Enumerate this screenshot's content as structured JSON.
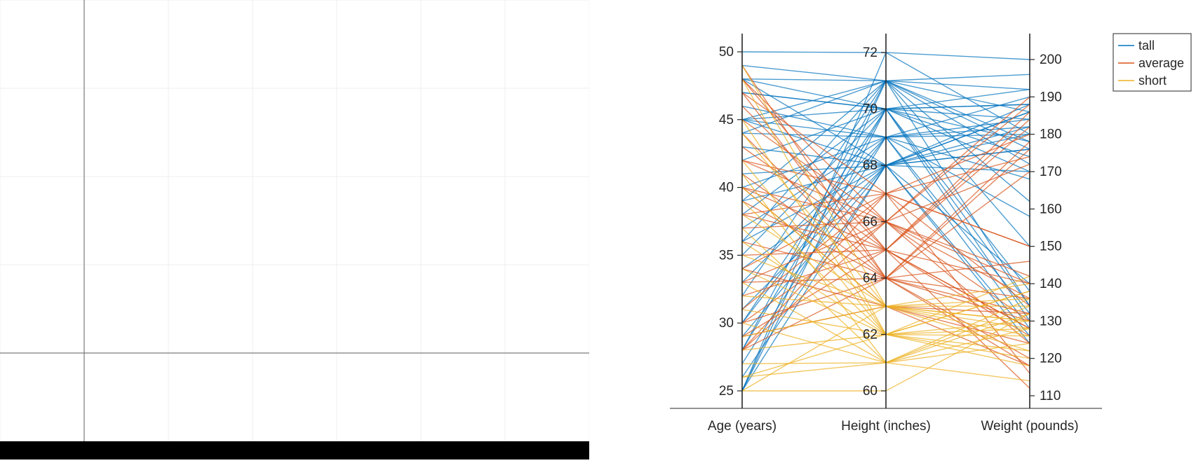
{
  "left_plot": {
    "x_range": [
      -1,
      6
    ],
    "y_range": [
      -1,
      4
    ],
    "grid": true,
    "axes_color": "#7a7a7a",
    "grid_color": "#efefef",
    "footer_bar_color": "#000000"
  },
  "chart_data": {
    "type": "parallel_coordinates",
    "title": "",
    "dimensions": [
      {
        "label": "Age (years)",
        "range": [
          25,
          50
        ],
        "ticks": [
          "25",
          "30",
          "35",
          "40",
          "45",
          "50"
        ]
      },
      {
        "label": "Height (inches)",
        "range": [
          60,
          72
        ],
        "ticks": [
          "60",
          "62",
          "64",
          "66",
          "68",
          "70",
          "72"
        ]
      },
      {
        "label": "Weight (pounds)",
        "range": [
          110,
          200
        ],
        "ticks": [
          "110",
          "120",
          "130",
          "140",
          "150",
          "160",
          "170",
          "180",
          "190",
          "200"
        ]
      }
    ],
    "legend": {
      "position": "top-right",
      "entries": [
        "tall",
        "average",
        "short"
      ]
    },
    "series": [
      {
        "name": "tall",
        "color": "#0072BD",
        "lines": [
          [
            50,
            72,
            200
          ],
          [
            49,
            71,
            196
          ],
          [
            48,
            71,
            192
          ],
          [
            48,
            70,
            188
          ],
          [
            47,
            70,
            184
          ],
          [
            46,
            69,
            180
          ],
          [
            45,
            71,
            186
          ],
          [
            45,
            68,
            176
          ],
          [
            45,
            70,
            178
          ],
          [
            44,
            69,
            190
          ],
          [
            44,
            71,
            172
          ],
          [
            43,
            68,
            182
          ],
          [
            42,
            70,
            188
          ],
          [
            41,
            68,
            170
          ],
          [
            40,
            69,
            168
          ],
          [
            39,
            71,
            162
          ],
          [
            39,
            68,
            176
          ],
          [
            38,
            70,
            192
          ],
          [
            37,
            69,
            184
          ],
          [
            36,
            68,
            186
          ],
          [
            36,
            71,
            178
          ],
          [
            35,
            70,
            174
          ],
          [
            34,
            68,
            180
          ],
          [
            33,
            69,
            158
          ],
          [
            32,
            71,
            150
          ],
          [
            31,
            68,
            140
          ],
          [
            30,
            70,
            134
          ],
          [
            30,
            69,
            128
          ],
          [
            29,
            68,
            186
          ],
          [
            28,
            71,
            176
          ],
          [
            28,
            70,
            170
          ],
          [
            27,
            69,
            182
          ],
          [
            26,
            68,
            188
          ],
          [
            25,
            72,
            180
          ],
          [
            25,
            71,
            134
          ],
          [
            25,
            70,
            130
          ],
          [
            25,
            68,
            126
          ],
          [
            48,
            68,
            124
          ],
          [
            47,
            70,
            138
          ],
          [
            45,
            69,
            132
          ]
        ]
      },
      {
        "name": "average",
        "color": "#D95319",
        "lines": [
          [
            49,
            64,
            132
          ],
          [
            48,
            65,
            128
          ],
          [
            48,
            66,
            124
          ],
          [
            47,
            64,
            120
          ],
          [
            47,
            67,
            116
          ],
          [
            46,
            65,
            112
          ],
          [
            45,
            66,
            140
          ],
          [
            44,
            64,
            146
          ],
          [
            43,
            65,
            128
          ],
          [
            42,
            66,
            130
          ],
          [
            42,
            67,
            150
          ],
          [
            41,
            64,
            136
          ],
          [
            40,
            65,
            126
          ],
          [
            40,
            66,
            142
          ],
          [
            39,
            64,
            118
          ],
          [
            38,
            67,
            134
          ],
          [
            38,
            65,
            186
          ],
          [
            37,
            66,
            190
          ],
          [
            36,
            64,
            178
          ],
          [
            35,
            65,
            182
          ],
          [
            34,
            67,
            174
          ],
          [
            33,
            64,
            170
          ],
          [
            33,
            66,
            188
          ],
          [
            32,
            65,
            184
          ],
          [
            31,
            67,
            180
          ],
          [
            30,
            64,
            176
          ],
          [
            30,
            66,
            172
          ],
          [
            29,
            65,
            140
          ],
          [
            28,
            67,
            150
          ],
          [
            28,
            66,
            136
          ],
          [
            28,
            64,
            130
          ],
          [
            29,
            63,
            124
          ],
          [
            34,
            63,
            118
          ],
          [
            40,
            63,
            132
          ]
        ]
      },
      {
        "name": "short",
        "color": "#EDB120",
        "lines": [
          [
            49,
            63,
            130
          ],
          [
            48,
            62,
            126
          ],
          [
            44,
            63,
            122
          ],
          [
            42,
            62,
            138
          ],
          [
            41,
            61,
            134
          ],
          [
            40,
            63,
            128
          ],
          [
            39,
            62,
            120
          ],
          [
            38,
            63,
            140
          ],
          [
            37,
            61,
            132
          ],
          [
            36,
            62,
            118
          ],
          [
            35,
            63,
            136
          ],
          [
            34,
            62,
            142
          ],
          [
            33,
            61,
            114
          ],
          [
            32,
            63,
            126
          ],
          [
            31,
            62,
            130
          ],
          [
            30,
            61,
            124
          ],
          [
            29,
            63,
            134
          ],
          [
            28,
            62,
            128
          ],
          [
            27,
            61,
            136
          ],
          [
            26,
            62,
            122
          ],
          [
            25,
            63,
            130
          ],
          [
            25,
            60,
            132
          ],
          [
            26,
            61,
            128
          ],
          [
            45,
            62,
            138
          ]
        ]
      }
    ]
  }
}
